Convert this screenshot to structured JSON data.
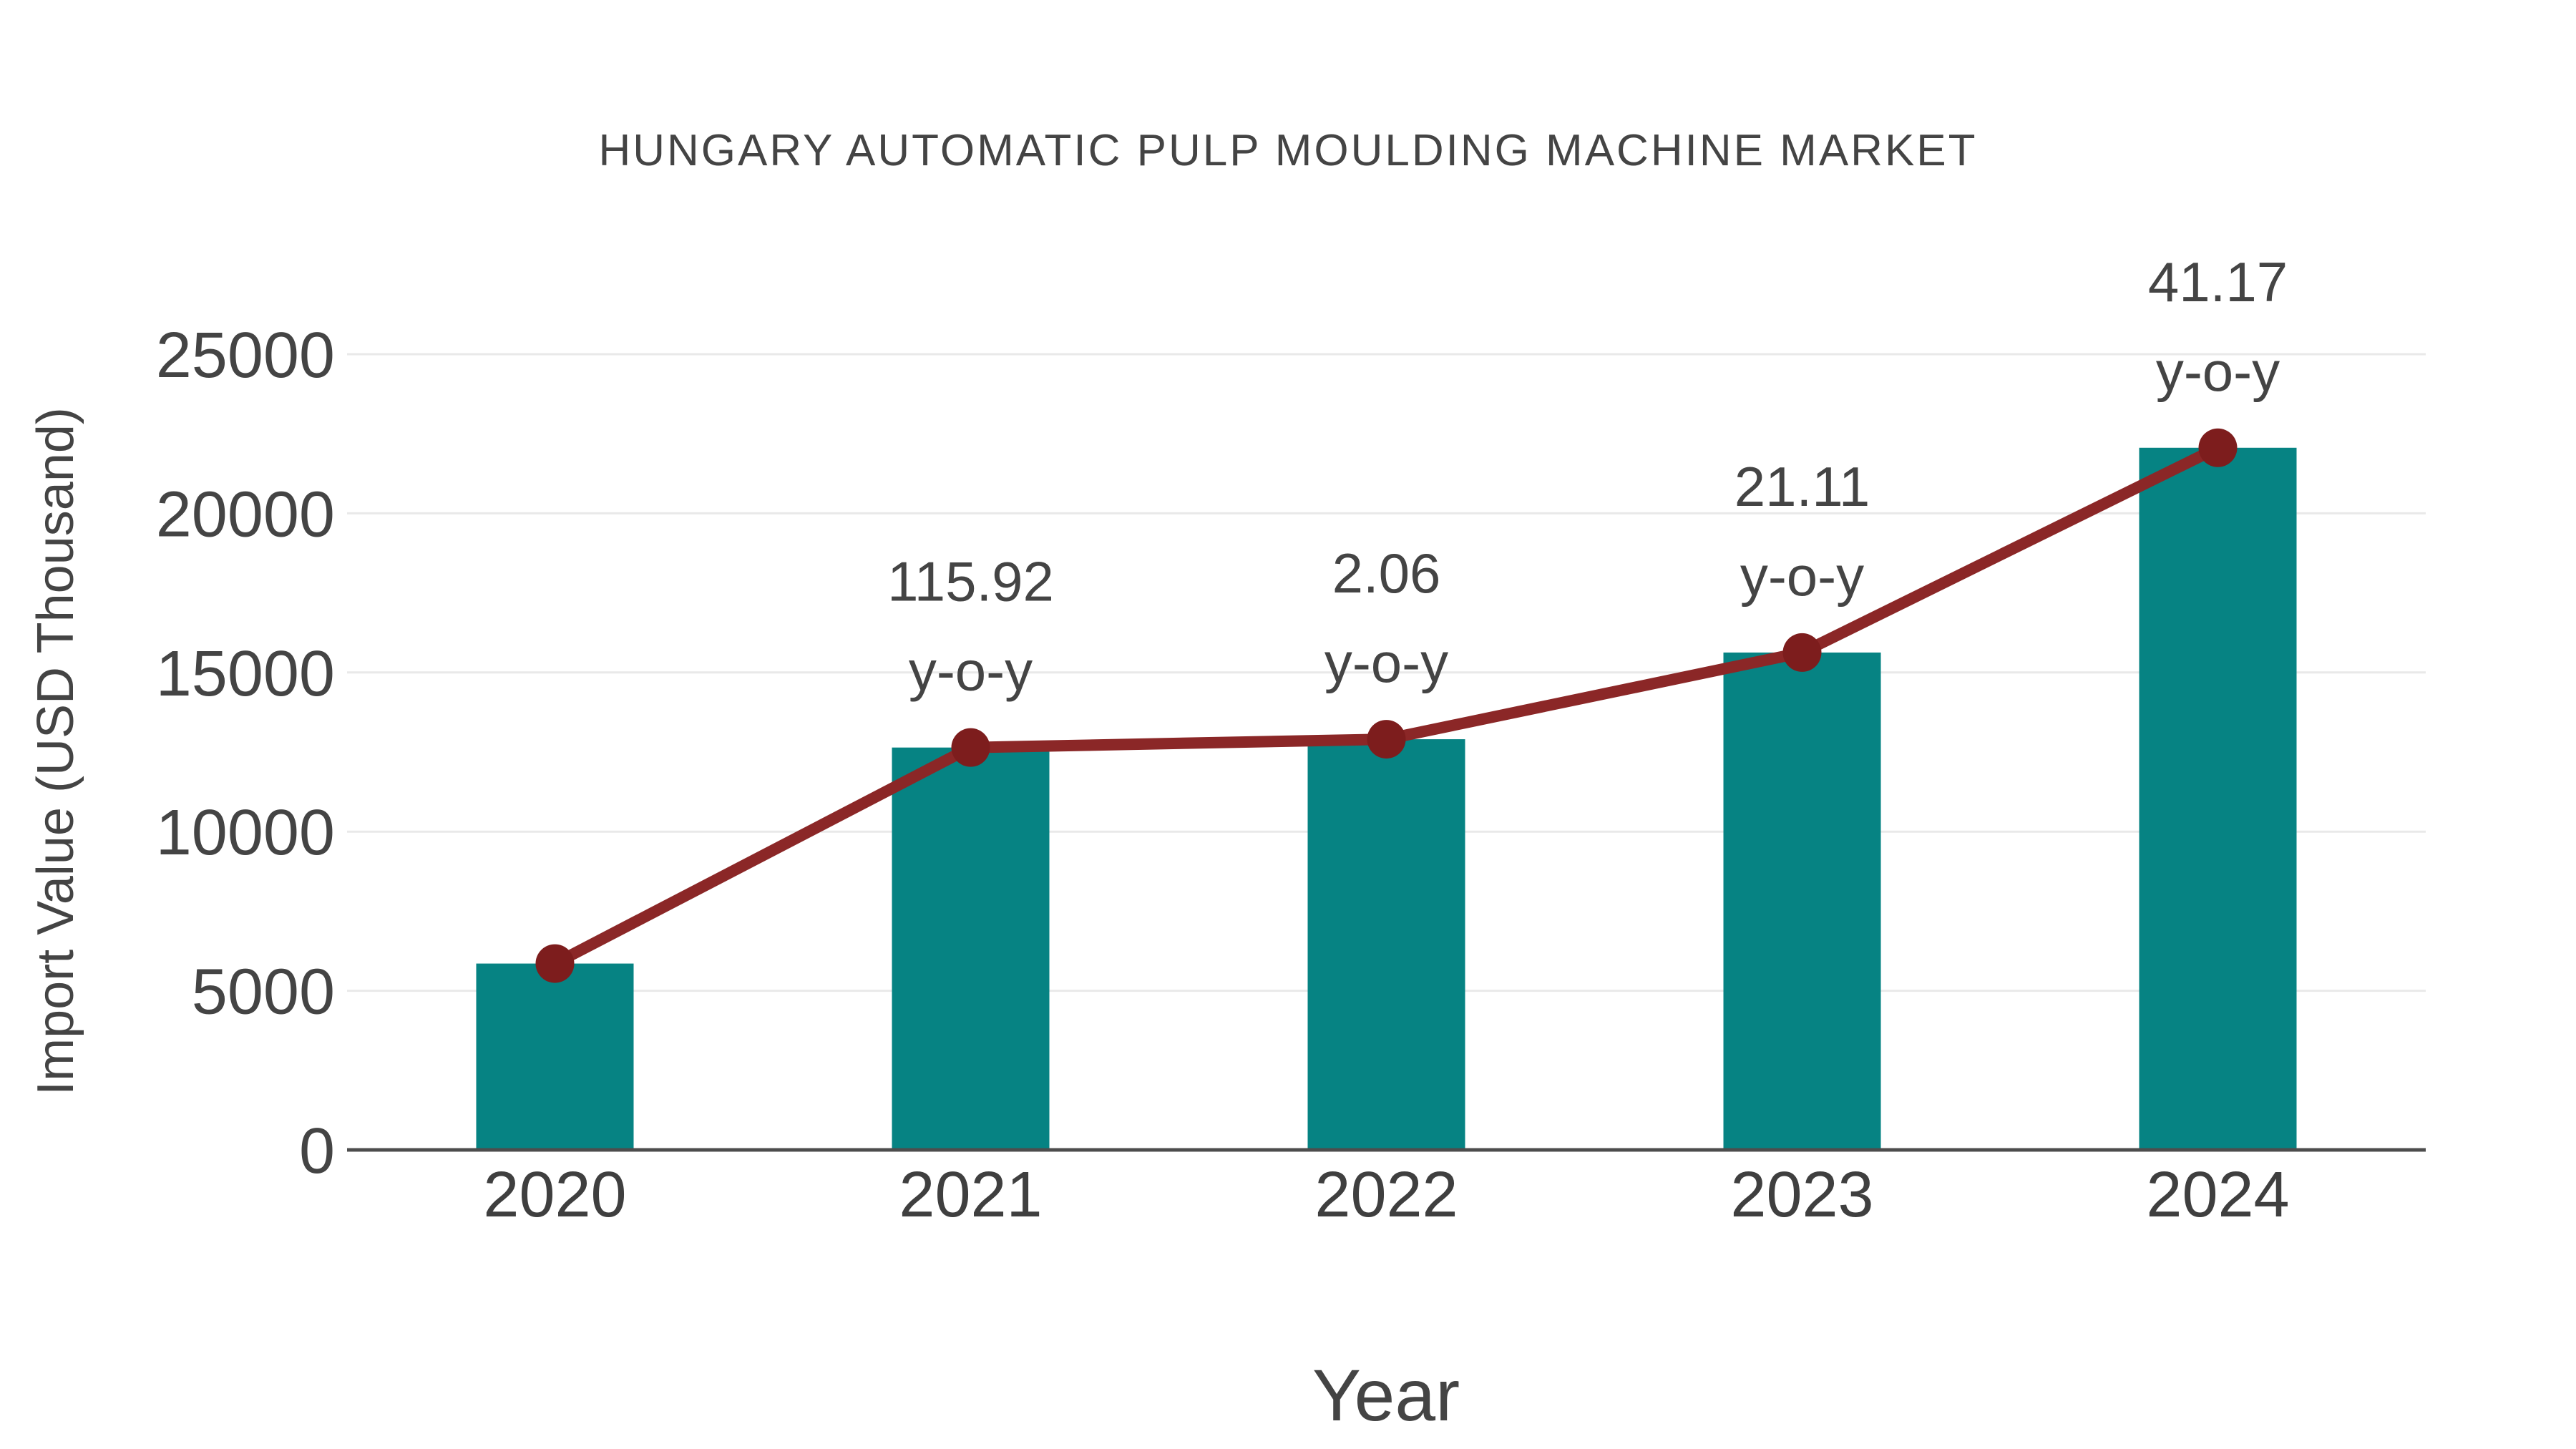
{
  "page": {
    "background": "#ffffff"
  },
  "chart_data": {
    "type": "bar+line",
    "title": "HUNGARY AUTOMATIC PULP MOULDING MACHINE MARKET",
    "xlabel": "Year",
    "ylabel": "Import Value (USD Thousand)",
    "categories": [
      "2020",
      "2021",
      "2022",
      "2023",
      "2024"
    ],
    "series": [
      {
        "name": "Import Value bars",
        "type": "bar",
        "color": "#068383",
        "values": [
          5855,
          12642,
          12903,
          15627,
          22060
        ]
      },
      {
        "name": "Import Value trend line",
        "type": "line",
        "color": "#8B2727",
        "marker_color": "#7D1D1D",
        "values": [
          5855,
          12642,
          12903,
          15627,
          22060
        ]
      }
    ],
    "point_annotations": [
      {
        "category": "2021",
        "line1": "115.92",
        "line2": "y-o-y"
      },
      {
        "category": "2022",
        "line1": "2.06",
        "line2": "y-o-y"
      },
      {
        "category": "2023",
        "line1": "21.11",
        "line2": "y-o-y"
      },
      {
        "category": "2024",
        "line1": "41.17",
        "line2": "y-o-y"
      }
    ],
    "yticks": [
      0,
      5000,
      10000,
      15000,
      20000,
      25000
    ],
    "ylim": [
      0,
      27000
    ],
    "grid": true,
    "legend": "none",
    "gridline_color": "#e9e9e9",
    "axis_line_color": "#4d4d4d",
    "text_color": "#444444"
  }
}
